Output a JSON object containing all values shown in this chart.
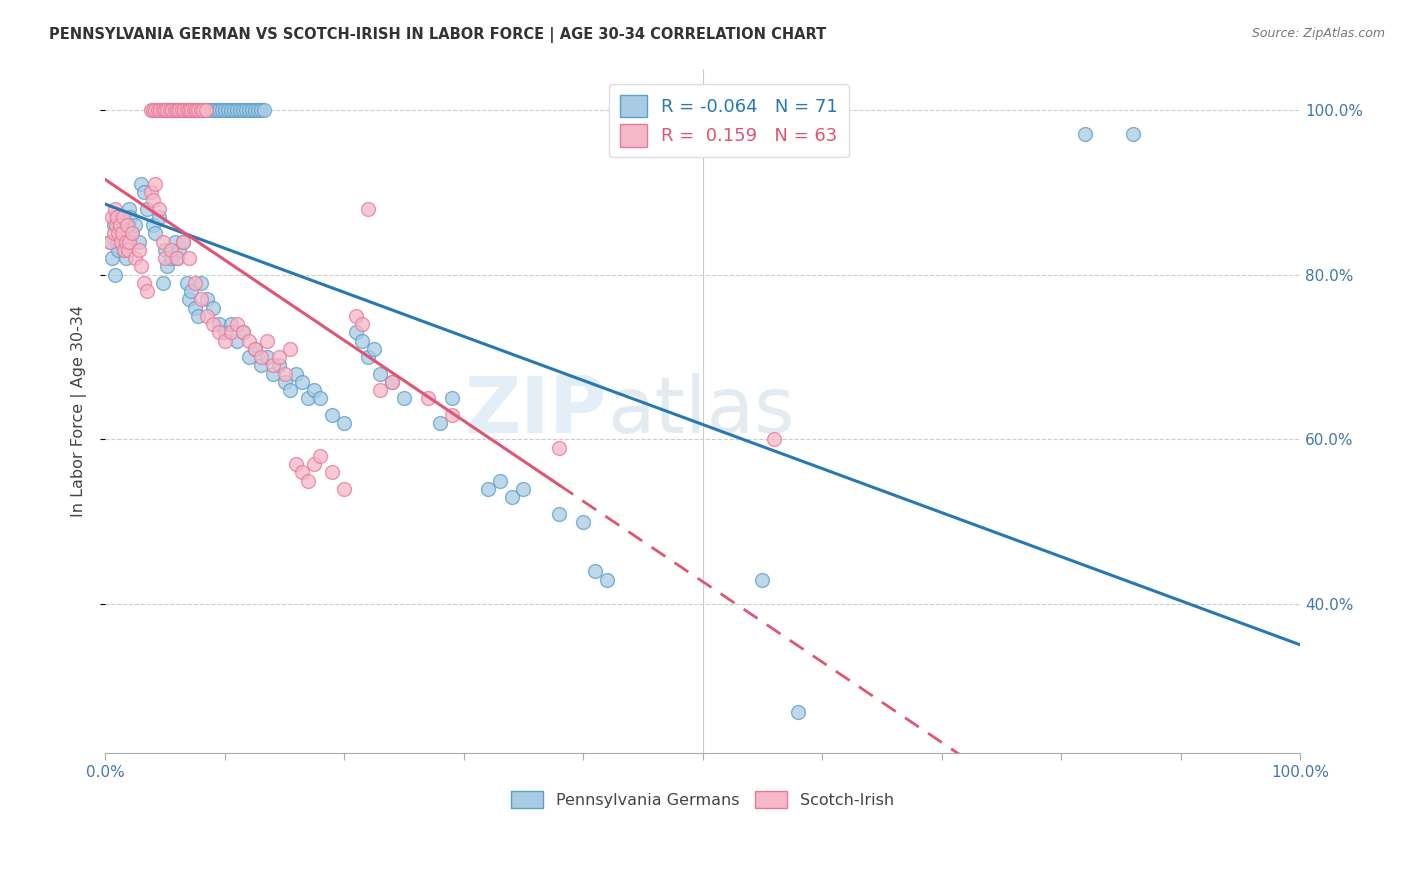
{
  "title": "PENNSYLVANIA GERMAN VS SCOTCH-IRISH IN LABOR FORCE | AGE 30-34 CORRELATION CHART",
  "source": "Source: ZipAtlas.com",
  "ylabel": "In Labor Force | Age 30-34",
  "xlim": [
    0.0,
    1.0
  ],
  "ylim": [
    0.22,
    1.05
  ],
  "xtick_labels": [
    "0.0%",
    "",
    "",
    "",
    "",
    "",
    "",
    "",
    "",
    "",
    "100.0%"
  ],
  "xtick_vals": [
    0.0,
    0.1,
    0.2,
    0.3,
    0.4,
    0.5,
    0.6,
    0.7,
    0.8,
    0.9,
    1.0
  ],
  "ytick_labels": [
    "40.0%",
    "60.0%",
    "80.0%",
    "100.0%"
  ],
  "ytick_vals": [
    0.4,
    0.6,
    0.8,
    1.0
  ],
  "legend_R_blue": "-0.064",
  "legend_N_blue": "71",
  "legend_R_pink": "0.159",
  "legend_N_pink": "63",
  "blue_color": "#a8cce4",
  "pink_color": "#f4b8c8",
  "blue_edge_color": "#5b9ec9",
  "pink_edge_color": "#e8799a",
  "blue_line_color": "#2878b4",
  "pink_line_color": "#e05575",
  "watermark_zip": "ZIP",
  "watermark_atlas": "atlas",
  "blue_scatter": [
    [
      0.004,
      0.84
    ],
    [
      0.006,
      0.82
    ],
    [
      0.007,
      0.86
    ],
    [
      0.008,
      0.8
    ],
    [
      0.009,
      0.87
    ],
    [
      0.01,
      0.84
    ],
    [
      0.011,
      0.83
    ],
    [
      0.012,
      0.85
    ],
    [
      0.013,
      0.84
    ],
    [
      0.014,
      0.86
    ],
    [
      0.015,
      0.85
    ],
    [
      0.016,
      0.83
    ],
    [
      0.017,
      0.82
    ],
    [
      0.018,
      0.84
    ],
    [
      0.019,
      0.86
    ],
    [
      0.02,
      0.88
    ],
    [
      0.021,
      0.87
    ],
    [
      0.022,
      0.85
    ],
    [
      0.025,
      0.86
    ],
    [
      0.028,
      0.84
    ],
    [
      0.03,
      0.91
    ],
    [
      0.032,
      0.9
    ],
    [
      0.035,
      0.88
    ],
    [
      0.04,
      0.86
    ],
    [
      0.042,
      0.85
    ],
    [
      0.045,
      0.87
    ],
    [
      0.048,
      0.79
    ],
    [
      0.05,
      0.83
    ],
    [
      0.052,
      0.81
    ],
    [
      0.055,
      0.82
    ],
    [
      0.058,
      0.84
    ],
    [
      0.06,
      0.82
    ],
    [
      0.062,
      0.83
    ],
    [
      0.065,
      0.84
    ],
    [
      0.068,
      0.79
    ],
    [
      0.07,
      0.77
    ],
    [
      0.072,
      0.78
    ],
    [
      0.075,
      0.76
    ],
    [
      0.078,
      0.75
    ],
    [
      0.08,
      0.79
    ],
    [
      0.085,
      0.77
    ],
    [
      0.09,
      0.76
    ],
    [
      0.095,
      0.74
    ],
    [
      0.1,
      0.73
    ],
    [
      0.105,
      0.74
    ],
    [
      0.11,
      0.72
    ],
    [
      0.115,
      0.73
    ],
    [
      0.12,
      0.7
    ],
    [
      0.125,
      0.71
    ],
    [
      0.13,
      0.69
    ],
    [
      0.135,
      0.7
    ],
    [
      0.14,
      0.68
    ],
    [
      0.145,
      0.69
    ],
    [
      0.15,
      0.67
    ],
    [
      0.155,
      0.66
    ],
    [
      0.16,
      0.68
    ],
    [
      0.165,
      0.67
    ],
    [
      0.17,
      0.65
    ],
    [
      0.175,
      0.66
    ],
    [
      0.18,
      0.65
    ],
    [
      0.19,
      0.63
    ],
    [
      0.2,
      0.62
    ],
    [
      0.21,
      0.73
    ],
    [
      0.215,
      0.72
    ],
    [
      0.22,
      0.7
    ],
    [
      0.225,
      0.71
    ],
    [
      0.23,
      0.68
    ],
    [
      0.24,
      0.67
    ],
    [
      0.25,
      0.65
    ],
    [
      0.28,
      0.62
    ],
    [
      0.29,
      0.65
    ],
    [
      0.32,
      0.54
    ],
    [
      0.33,
      0.55
    ],
    [
      0.34,
      0.53
    ],
    [
      0.35,
      0.54
    ],
    [
      0.38,
      0.51
    ],
    [
      0.4,
      0.5
    ],
    [
      0.41,
      0.44
    ],
    [
      0.42,
      0.43
    ],
    [
      0.55,
      0.43
    ],
    [
      0.58,
      0.27
    ],
    [
      0.82,
      0.97
    ],
    [
      0.86,
      0.97
    ],
    [
      0.052,
      1.0
    ],
    [
      0.055,
      1.0
    ],
    [
      0.058,
      1.0
    ],
    [
      0.06,
      1.0
    ],
    [
      0.062,
      1.0
    ],
    [
      0.065,
      1.0
    ],
    [
      0.068,
      1.0
    ],
    [
      0.07,
      1.0
    ],
    [
      0.072,
      1.0
    ],
    [
      0.075,
      1.0
    ],
    [
      0.078,
      1.0
    ],
    [
      0.08,
      1.0
    ],
    [
      0.082,
      1.0
    ],
    [
      0.085,
      1.0
    ],
    [
      0.088,
      1.0
    ],
    [
      0.09,
      1.0
    ],
    [
      0.093,
      1.0
    ],
    [
      0.095,
      1.0
    ],
    [
      0.098,
      1.0
    ],
    [
      0.1,
      1.0
    ],
    [
      0.103,
      1.0
    ],
    [
      0.105,
      1.0
    ],
    [
      0.108,
      1.0
    ],
    [
      0.11,
      1.0
    ],
    [
      0.113,
      1.0
    ],
    [
      0.115,
      1.0
    ],
    [
      0.118,
      1.0
    ],
    [
      0.12,
      1.0
    ],
    [
      0.123,
      1.0
    ],
    [
      0.125,
      1.0
    ],
    [
      0.128,
      1.0
    ],
    [
      0.13,
      1.0
    ],
    [
      0.133,
      1.0
    ]
  ],
  "pink_scatter": [
    [
      0.004,
      0.84
    ],
    [
      0.006,
      0.87
    ],
    [
      0.007,
      0.85
    ],
    [
      0.008,
      0.88
    ],
    [
      0.009,
      0.86
    ],
    [
      0.01,
      0.87
    ],
    [
      0.011,
      0.85
    ],
    [
      0.012,
      0.86
    ],
    [
      0.013,
      0.84
    ],
    [
      0.014,
      0.85
    ],
    [
      0.015,
      0.87
    ],
    [
      0.016,
      0.83
    ],
    [
      0.017,
      0.84
    ],
    [
      0.018,
      0.86
    ],
    [
      0.019,
      0.83
    ],
    [
      0.02,
      0.84
    ],
    [
      0.022,
      0.85
    ],
    [
      0.025,
      0.82
    ],
    [
      0.028,
      0.83
    ],
    [
      0.03,
      0.81
    ],
    [
      0.032,
      0.79
    ],
    [
      0.035,
      0.78
    ],
    [
      0.038,
      0.9
    ],
    [
      0.04,
      0.89
    ],
    [
      0.042,
      0.91
    ],
    [
      0.045,
      0.88
    ],
    [
      0.048,
      0.84
    ],
    [
      0.05,
      0.82
    ],
    [
      0.055,
      0.83
    ],
    [
      0.06,
      0.82
    ],
    [
      0.065,
      0.84
    ],
    [
      0.07,
      0.82
    ],
    [
      0.075,
      0.79
    ],
    [
      0.08,
      0.77
    ],
    [
      0.085,
      0.75
    ],
    [
      0.09,
      0.74
    ],
    [
      0.095,
      0.73
    ],
    [
      0.1,
      0.72
    ],
    [
      0.105,
      0.73
    ],
    [
      0.11,
      0.74
    ],
    [
      0.115,
      0.73
    ],
    [
      0.12,
      0.72
    ],
    [
      0.125,
      0.71
    ],
    [
      0.13,
      0.7
    ],
    [
      0.135,
      0.72
    ],
    [
      0.14,
      0.69
    ],
    [
      0.145,
      0.7
    ],
    [
      0.15,
      0.68
    ],
    [
      0.155,
      0.71
    ],
    [
      0.16,
      0.57
    ],
    [
      0.165,
      0.56
    ],
    [
      0.17,
      0.55
    ],
    [
      0.175,
      0.57
    ],
    [
      0.18,
      0.58
    ],
    [
      0.19,
      0.56
    ],
    [
      0.2,
      0.54
    ],
    [
      0.21,
      0.75
    ],
    [
      0.215,
      0.74
    ],
    [
      0.22,
      0.88
    ],
    [
      0.23,
      0.66
    ],
    [
      0.24,
      0.67
    ],
    [
      0.27,
      0.65
    ],
    [
      0.29,
      0.63
    ],
    [
      0.38,
      0.59
    ],
    [
      0.56,
      0.6
    ],
    [
      0.038,
      1.0
    ],
    [
      0.04,
      1.0
    ],
    [
      0.042,
      1.0
    ],
    [
      0.044,
      1.0
    ],
    [
      0.046,
      1.0
    ],
    [
      0.048,
      1.0
    ],
    [
      0.05,
      1.0
    ],
    [
      0.052,
      1.0
    ],
    [
      0.054,
      1.0
    ],
    [
      0.056,
      1.0
    ],
    [
      0.058,
      1.0
    ],
    [
      0.06,
      1.0
    ],
    [
      0.062,
      1.0
    ],
    [
      0.064,
      1.0
    ],
    [
      0.066,
      1.0
    ],
    [
      0.068,
      1.0
    ],
    [
      0.07,
      1.0
    ],
    [
      0.072,
      1.0
    ],
    [
      0.074,
      1.0
    ],
    [
      0.076,
      1.0
    ],
    [
      0.078,
      1.0
    ],
    [
      0.08,
      1.0
    ],
    [
      0.082,
      1.0
    ],
    [
      0.084,
      1.0
    ]
  ]
}
